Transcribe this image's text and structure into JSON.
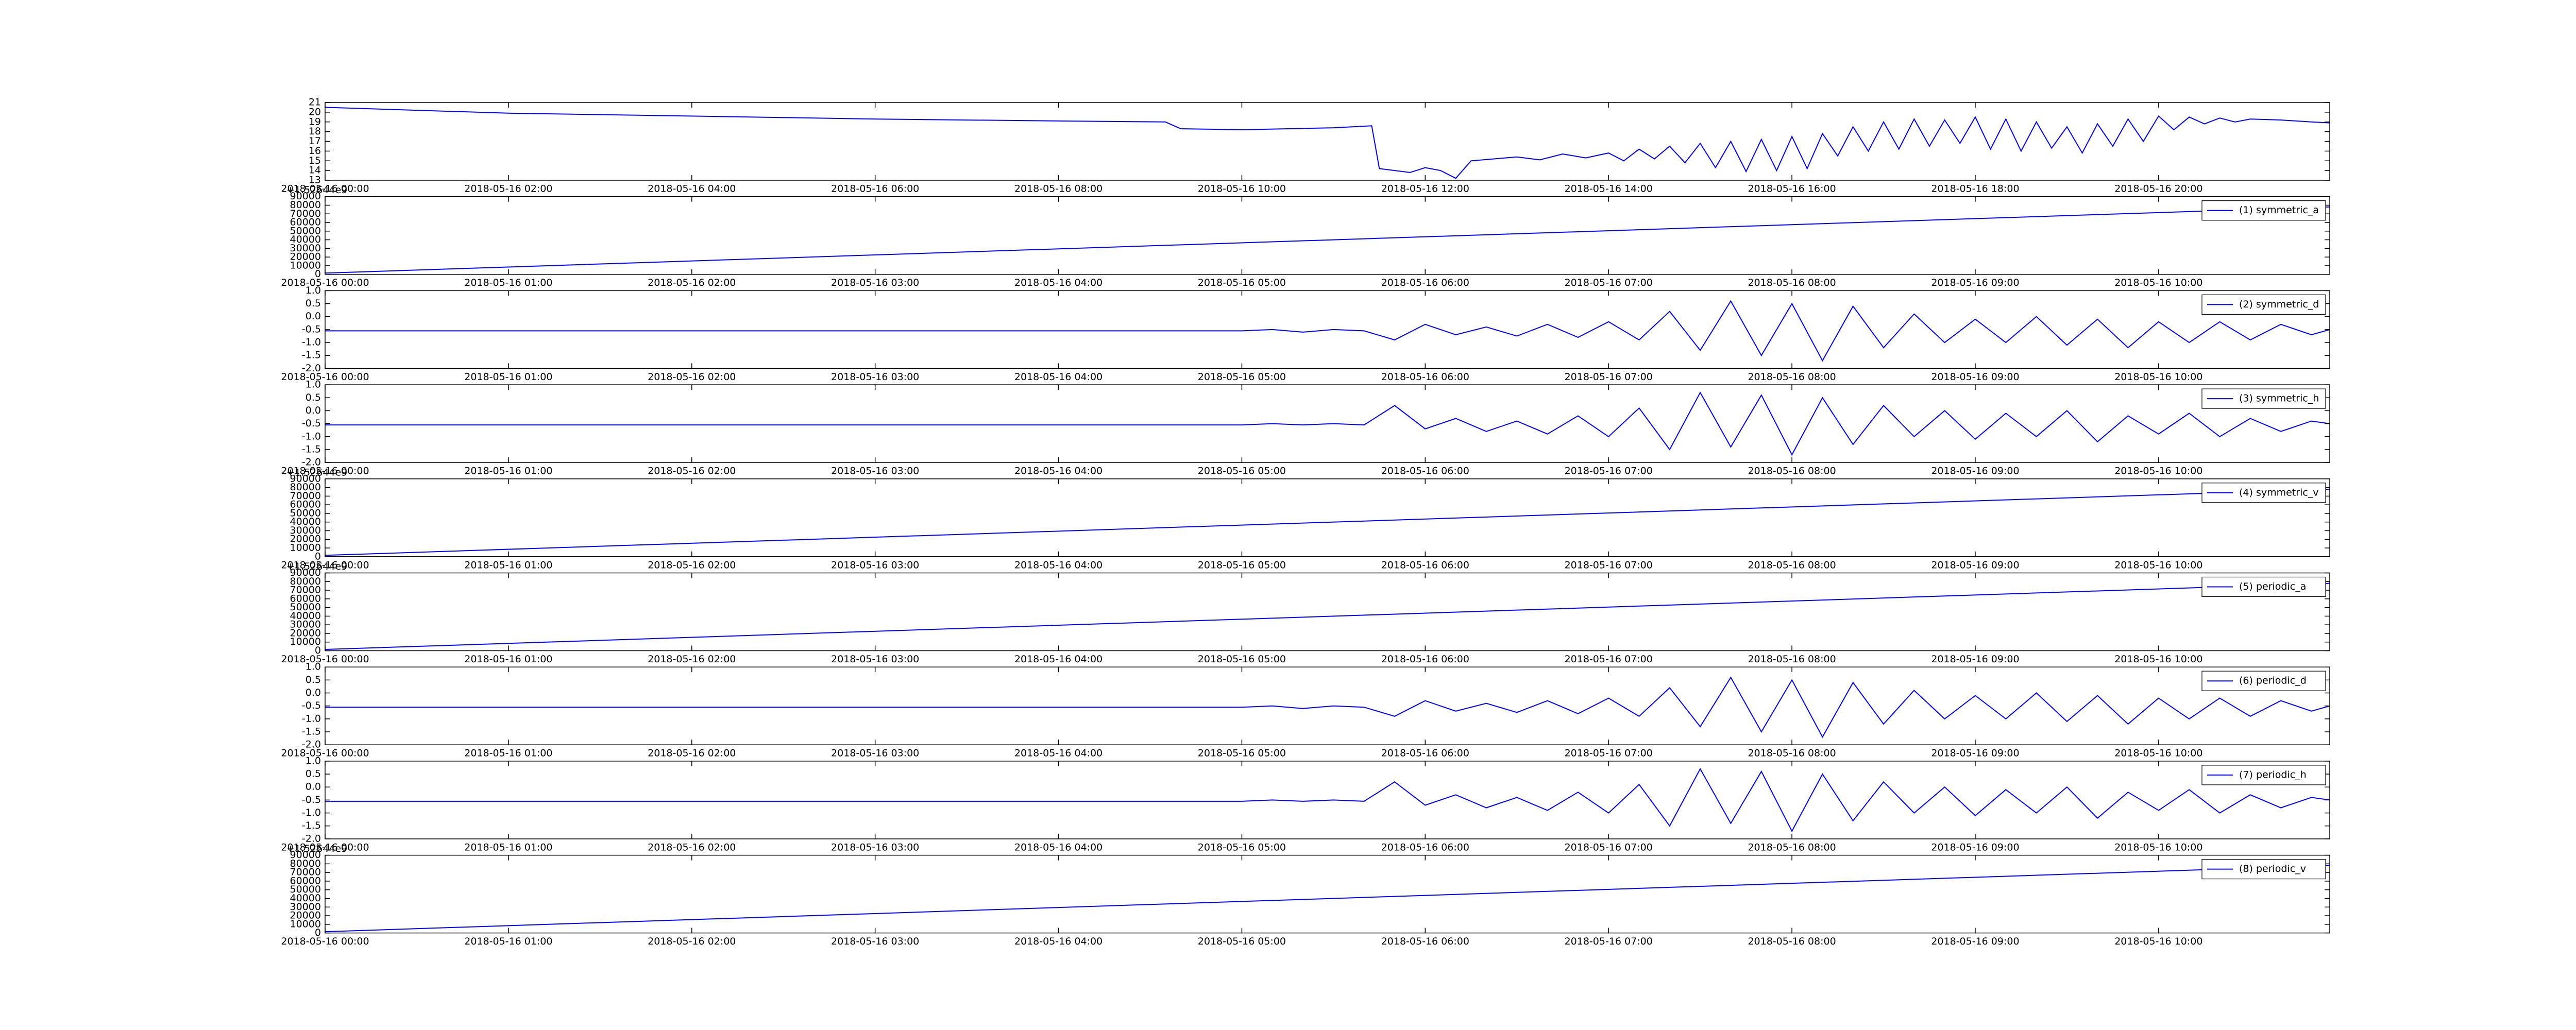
{
  "chart_data": [
    {
      "type": "line",
      "x": [
        "2018-05-16 00:00",
        "2018-05-16 02:00",
        "2018-05-16 04:00",
        "2018-05-16 06:00",
        "2018-05-16 08:00",
        "2018-05-16 09:10",
        "2018-05-16 09:20",
        "2018-05-16 10:00",
        "2018-05-16 10:30",
        "2018-05-16 11:00",
        "2018-05-16 11:25",
        "2018-05-16 11:30",
        "2018-05-16 11:50",
        "2018-05-16 12:00",
        "2018-05-16 12:10",
        "2018-05-16 12:20",
        "2018-05-16 12:30",
        "2018-05-16 12:45",
        "2018-05-16 13:00",
        "2018-05-16 13:15",
        "2018-05-16 13:30",
        "2018-05-16 13:45",
        "2018-05-16 14:00",
        "2018-05-16 14:10",
        "2018-05-16 14:20",
        "2018-05-16 14:30",
        "2018-05-16 14:40",
        "2018-05-16 14:50",
        "2018-05-16 15:00",
        "2018-05-16 15:10",
        "2018-05-16 15:20",
        "2018-05-16 15:30",
        "2018-05-16 15:40",
        "2018-05-16 15:50",
        "2018-05-16 16:00",
        "2018-05-16 16:10",
        "2018-05-16 16:20",
        "2018-05-16 16:30",
        "2018-05-16 16:40",
        "2018-05-16 16:50",
        "2018-05-16 17:00",
        "2018-05-16 17:10",
        "2018-05-16 17:20",
        "2018-05-16 17:30",
        "2018-05-16 17:40",
        "2018-05-16 17:50",
        "2018-05-16 18:00",
        "2018-05-16 18:10",
        "2018-05-16 18:20",
        "2018-05-16 18:30",
        "2018-05-16 18:40",
        "2018-05-16 18:50",
        "2018-05-16 19:00",
        "2018-05-16 19:10",
        "2018-05-16 19:20",
        "2018-05-16 19:30",
        "2018-05-16 19:40",
        "2018-05-16 19:50",
        "2018-05-16 20:00",
        "2018-05-16 20:10",
        "2018-05-16 20:20",
        "2018-05-16 20:30",
        "2018-05-16 20:40",
        "2018-05-16 20:50",
        "2018-05-16 21:00",
        "2018-05-16 21:20",
        "2018-05-16 21:40",
        "2018-05-16 21:52"
      ],
      "series": [
        {
          "color": "#0000ff",
          "values": [
            20.5,
            19.9,
            19.6,
            19.3,
            19.1,
            19.0,
            18.3,
            18.2,
            18.3,
            18.4,
            18.6,
            14.2,
            13.8,
            14.3,
            14.0,
            13.2,
            15.0,
            15.2,
            15.4,
            15.1,
            15.7,
            15.3,
            15.8,
            15.0,
            16.2,
            15.2,
            16.5,
            14.8,
            16.8,
            14.3,
            17.0,
            13.9,
            17.2,
            14.0,
            17.5,
            14.2,
            17.8,
            15.5,
            18.5,
            16.0,
            19.0,
            16.2,
            19.3,
            16.5,
            19.2,
            16.8,
            19.5,
            16.2,
            19.3,
            16.0,
            19.0,
            16.3,
            18.5,
            15.8,
            18.8,
            16.5,
            19.3,
            17.0,
            19.6,
            18.2,
            19.5,
            18.8,
            19.4,
            19.0,
            19.3,
            19.2,
            19.0,
            18.9
          ]
        }
      ],
      "xlim": [
        "2018-05-16 00:00",
        "2018-05-16 21:52"
      ],
      "xticks": [
        "2018-05-16 00:00",
        "2018-05-16 02:00",
        "2018-05-16 04:00",
        "2018-05-16 06:00",
        "2018-05-16 08:00",
        "2018-05-16 10:00",
        "2018-05-16 12:00",
        "2018-05-16 14:00",
        "2018-05-16 16:00",
        "2018-05-16 18:00",
        "2018-05-16 20:00"
      ],
      "ylim": [
        13,
        21
      ],
      "yticks": [
        13,
        14,
        15,
        16,
        17,
        18,
        19,
        20,
        21
      ]
    },
    {
      "type": "line",
      "x": [
        "2018-05-16 00:00",
        "2018-05-16 10:56"
      ],
      "series": [
        {
          "name": "(1) symmetric_a",
          "color": "#0000ff",
          "values": [
            1500,
            78000
          ]
        }
      ],
      "xlim": [
        "2018-05-16 00:00",
        "2018-05-16 10:56"
      ],
      "xticks": [
        "2018-05-16 00:00",
        "2018-05-16 01:00",
        "2018-05-16 02:00",
        "2018-05-16 03:00",
        "2018-05-16 04:00",
        "2018-05-16 05:00",
        "2018-05-16 06:00",
        "2018-05-16 07:00",
        "2018-05-16 08:00",
        "2018-05-16 09:00",
        "2018-05-16 10:00"
      ],
      "ylim": [
        0,
        90000
      ],
      "yticks": [
        0,
        10000,
        20000,
        30000,
        40000,
        50000,
        60000,
        70000,
        80000,
        90000
      ],
      "y_offset": "+1.52644e9",
      "legend": "upper right"
    },
    {
      "type": "line",
      "x": [
        "2018-05-16 00:00",
        "2018-05-16 05:00",
        "2018-05-16 05:10",
        "2018-05-16 05:20",
        "2018-05-16 05:30",
        "2018-05-16 05:40",
        "2018-05-16 05:50",
        "2018-05-16 06:00",
        "2018-05-16 06:10",
        "2018-05-16 06:20",
        "2018-05-16 06:30",
        "2018-05-16 06:40",
        "2018-05-16 06:50",
        "2018-05-16 07:00",
        "2018-05-16 07:10",
        "2018-05-16 07:20",
        "2018-05-16 07:30",
        "2018-05-16 07:40",
        "2018-05-16 07:50",
        "2018-05-16 08:00",
        "2018-05-16 08:10",
        "2018-05-16 08:20",
        "2018-05-16 08:30",
        "2018-05-16 08:40",
        "2018-05-16 08:50",
        "2018-05-16 09:00",
        "2018-05-16 09:10",
        "2018-05-16 09:20",
        "2018-05-16 09:30",
        "2018-05-16 09:40",
        "2018-05-16 09:50",
        "2018-05-16 10:00",
        "2018-05-16 10:10",
        "2018-05-16 10:20",
        "2018-05-16 10:30",
        "2018-05-16 10:40",
        "2018-05-16 10:50",
        "2018-05-16 10:56"
      ],
      "series": [
        {
          "name": "(2) symmetric_d",
          "color": "#0000ff",
          "values": [
            -0.55,
            -0.55,
            -0.5,
            -0.6,
            -0.5,
            -0.55,
            -0.9,
            -0.3,
            -0.7,
            -0.4,
            -0.75,
            -0.3,
            -0.8,
            -0.2,
            -0.9,
            0.2,
            -1.3,
            0.6,
            -1.5,
            0.5,
            -1.7,
            0.4,
            -1.2,
            0.1,
            -1.0,
            -0.1,
            -1.0,
            0.0,
            -1.1,
            -0.1,
            -1.2,
            -0.2,
            -1.0,
            -0.2,
            -0.9,
            -0.3,
            -0.7,
            -0.5
          ]
        }
      ],
      "xlim": [
        "2018-05-16 00:00",
        "2018-05-16 10:56"
      ],
      "xticks": [
        "2018-05-16 00:00",
        "2018-05-16 01:00",
        "2018-05-16 02:00",
        "2018-05-16 03:00",
        "2018-05-16 04:00",
        "2018-05-16 05:00",
        "2018-05-16 06:00",
        "2018-05-16 07:00",
        "2018-05-16 08:00",
        "2018-05-16 09:00",
        "2018-05-16 10:00"
      ],
      "ylim": [
        -2,
        1
      ],
      "yticks": [
        {
          "value": -2,
          "label": "-2.0"
        },
        -1.5,
        {
          "value": -1,
          "label": "-1.0"
        },
        -0.5,
        {
          "value": 0,
          "label": "0.0"
        },
        0.5,
        {
          "value": 1,
          "label": "1.0"
        }
      ],
      "legend": "upper right"
    },
    {
      "type": "line",
      "x": [
        "2018-05-16 00:00",
        "2018-05-16 05:00",
        "2018-05-16 05:10",
        "2018-05-16 05:20",
        "2018-05-16 05:30",
        "2018-05-16 05:40",
        "2018-05-16 05:50",
        "2018-05-16 06:00",
        "2018-05-16 06:10",
        "2018-05-16 06:20",
        "2018-05-16 06:30",
        "2018-05-16 06:40",
        "2018-05-16 06:50",
        "2018-05-16 07:00",
        "2018-05-16 07:10",
        "2018-05-16 07:20",
        "2018-05-16 07:30",
        "2018-05-16 07:40",
        "2018-05-16 07:50",
        "2018-05-16 08:00",
        "2018-05-16 08:10",
        "2018-05-16 08:20",
        "2018-05-16 08:30",
        "2018-05-16 08:40",
        "2018-05-16 08:50",
        "2018-05-16 09:00",
        "2018-05-16 09:10",
        "2018-05-16 09:20",
        "2018-05-16 09:30",
        "2018-05-16 09:40",
        "2018-05-16 09:50",
        "2018-05-16 10:00",
        "2018-05-16 10:10",
        "2018-05-16 10:20",
        "2018-05-16 10:30",
        "2018-05-16 10:40",
        "2018-05-16 10:50",
        "2018-05-16 10:56"
      ],
      "series": [
        {
          "name": "(3) symmetric_h",
          "color": "#0000ff",
          "values": [
            -0.55,
            -0.55,
            -0.5,
            -0.55,
            -0.5,
            -0.55,
            0.2,
            -0.7,
            -0.3,
            -0.8,
            -0.4,
            -0.9,
            -0.2,
            -1.0,
            0.1,
            -1.5,
            0.7,
            -1.4,
            0.6,
            -1.7,
            0.5,
            -1.3,
            0.2,
            -1.0,
            0.0,
            -1.1,
            -0.1,
            -1.0,
            0.0,
            -1.2,
            -0.2,
            -0.9,
            -0.1,
            -1.0,
            -0.3,
            -0.8,
            -0.4,
            -0.5
          ]
        }
      ],
      "xlim": [
        "2018-05-16 00:00",
        "2018-05-16 10:56"
      ],
      "xticks": [
        "2018-05-16 00:00",
        "2018-05-16 01:00",
        "2018-05-16 02:00",
        "2018-05-16 03:00",
        "2018-05-16 04:00",
        "2018-05-16 05:00",
        "2018-05-16 06:00",
        "2018-05-16 07:00",
        "2018-05-16 08:00",
        "2018-05-16 09:00",
        "2018-05-16 10:00"
      ],
      "ylim": [
        -2,
        1
      ],
      "yticks": [
        {
          "value": -2,
          "label": "-2.0"
        },
        -1.5,
        {
          "value": -1,
          "label": "-1.0"
        },
        -0.5,
        {
          "value": 0,
          "label": "0.0"
        },
        0.5,
        {
          "value": 1,
          "label": "1.0"
        }
      ],
      "legend": "upper right"
    },
    {
      "type": "line",
      "x": [
        "2018-05-16 00:00",
        "2018-05-16 10:56"
      ],
      "series": [
        {
          "name": "(4) symmetric_v",
          "color": "#0000ff",
          "values": [
            1500,
            78000
          ]
        }
      ],
      "xlim": [
        "2018-05-16 00:00",
        "2018-05-16 10:56"
      ],
      "xticks": [
        "2018-05-16 00:00",
        "2018-05-16 01:00",
        "2018-05-16 02:00",
        "2018-05-16 03:00",
        "2018-05-16 04:00",
        "2018-05-16 05:00",
        "2018-05-16 06:00",
        "2018-05-16 07:00",
        "2018-05-16 08:00",
        "2018-05-16 09:00",
        "2018-05-16 10:00"
      ],
      "ylim": [
        0,
        90000
      ],
      "yticks": [
        0,
        10000,
        20000,
        30000,
        40000,
        50000,
        60000,
        70000,
        80000,
        90000
      ],
      "y_offset": "+1.52644e9",
      "legend": "upper right"
    },
    {
      "type": "line",
      "x": [
        "2018-05-16 00:00",
        "2018-05-16 10:56"
      ],
      "series": [
        {
          "name": "(5) periodic_a",
          "color": "#0000ff",
          "values": [
            1500,
            78000
          ]
        }
      ],
      "xlim": [
        "2018-05-16 00:00",
        "2018-05-16 10:56"
      ],
      "xticks": [
        "2018-05-16 00:00",
        "2018-05-16 01:00",
        "2018-05-16 02:00",
        "2018-05-16 03:00",
        "2018-05-16 04:00",
        "2018-05-16 05:00",
        "2018-05-16 06:00",
        "2018-05-16 07:00",
        "2018-05-16 08:00",
        "2018-05-16 09:00",
        "2018-05-16 10:00"
      ],
      "ylim": [
        0,
        90000
      ],
      "yticks": [
        0,
        10000,
        20000,
        30000,
        40000,
        50000,
        60000,
        70000,
        80000,
        90000
      ],
      "y_offset": "+1.52644e9",
      "legend": "upper right"
    },
    {
      "type": "line",
      "x": [
        "2018-05-16 00:00",
        "2018-05-16 05:00",
        "2018-05-16 05:10",
        "2018-05-16 05:20",
        "2018-05-16 05:30",
        "2018-05-16 05:40",
        "2018-05-16 05:50",
        "2018-05-16 06:00",
        "2018-05-16 06:10",
        "2018-05-16 06:20",
        "2018-05-16 06:30",
        "2018-05-16 06:40",
        "2018-05-16 06:50",
        "2018-05-16 07:00",
        "2018-05-16 07:10",
        "2018-05-16 07:20",
        "2018-05-16 07:30",
        "2018-05-16 07:40",
        "2018-05-16 07:50",
        "2018-05-16 08:00",
        "2018-05-16 08:10",
        "2018-05-16 08:20",
        "2018-05-16 08:30",
        "2018-05-16 08:40",
        "2018-05-16 08:50",
        "2018-05-16 09:00",
        "2018-05-16 09:10",
        "2018-05-16 09:20",
        "2018-05-16 09:30",
        "2018-05-16 09:40",
        "2018-05-16 09:50",
        "2018-05-16 10:00",
        "2018-05-16 10:10",
        "2018-05-16 10:20",
        "2018-05-16 10:30",
        "2018-05-16 10:40",
        "2018-05-16 10:50",
        "2018-05-16 10:56"
      ],
      "series": [
        {
          "name": "(6) periodic_d",
          "color": "#0000ff",
          "values": [
            -0.55,
            -0.55,
            -0.5,
            -0.6,
            -0.5,
            -0.55,
            -0.9,
            -0.3,
            -0.7,
            -0.4,
            -0.75,
            -0.3,
            -0.8,
            -0.2,
            -0.9,
            0.2,
            -1.3,
            0.6,
            -1.5,
            0.5,
            -1.7,
            0.4,
            -1.2,
            0.1,
            -1.0,
            -0.1,
            -1.0,
            0.0,
            -1.1,
            -0.1,
            -1.2,
            -0.2,
            -1.0,
            -0.2,
            -0.9,
            -0.3,
            -0.7,
            -0.5
          ]
        }
      ],
      "xlim": [
        "2018-05-16 00:00",
        "2018-05-16 10:56"
      ],
      "xticks": [
        "2018-05-16 00:00",
        "2018-05-16 01:00",
        "2018-05-16 02:00",
        "2018-05-16 03:00",
        "2018-05-16 04:00",
        "2018-05-16 05:00",
        "2018-05-16 06:00",
        "2018-05-16 07:00",
        "2018-05-16 08:00",
        "2018-05-16 09:00",
        "2018-05-16 10:00"
      ],
      "ylim": [
        -2,
        1
      ],
      "yticks": [
        {
          "value": -2,
          "label": "-2.0"
        },
        -1.5,
        {
          "value": -1,
          "label": "-1.0"
        },
        -0.5,
        {
          "value": 0,
          "label": "0.0"
        },
        0.5,
        {
          "value": 1,
          "label": "1.0"
        }
      ],
      "legend": "upper right"
    },
    {
      "type": "line",
      "x": [
        "2018-05-16 00:00",
        "2018-05-16 05:00",
        "2018-05-16 05:10",
        "2018-05-16 05:20",
        "2018-05-16 05:30",
        "2018-05-16 05:40",
        "2018-05-16 05:50",
        "2018-05-16 06:00",
        "2018-05-16 06:10",
        "2018-05-16 06:20",
        "2018-05-16 06:30",
        "2018-05-16 06:40",
        "2018-05-16 06:50",
        "2018-05-16 07:00",
        "2018-05-16 07:10",
        "2018-05-16 07:20",
        "2018-05-16 07:30",
        "2018-05-16 07:40",
        "2018-05-16 07:50",
        "2018-05-16 08:00",
        "2018-05-16 08:10",
        "2018-05-16 08:20",
        "2018-05-16 08:30",
        "2018-05-16 08:40",
        "2018-05-16 08:50",
        "2018-05-16 09:00",
        "2018-05-16 09:10",
        "2018-05-16 09:20",
        "2018-05-16 09:30",
        "2018-05-16 09:40",
        "2018-05-16 09:50",
        "2018-05-16 10:00",
        "2018-05-16 10:10",
        "2018-05-16 10:20",
        "2018-05-16 10:30",
        "2018-05-16 10:40",
        "2018-05-16 10:50",
        "2018-05-16 10:56"
      ],
      "series": [
        {
          "name": "(7) periodic_h",
          "color": "#0000ff",
          "values": [
            -0.55,
            -0.55,
            -0.5,
            -0.55,
            -0.5,
            -0.55,
            0.2,
            -0.7,
            -0.3,
            -0.8,
            -0.4,
            -0.9,
            -0.2,
            -1.0,
            0.1,
            -1.5,
            0.7,
            -1.4,
            0.6,
            -1.7,
            0.5,
            -1.3,
            0.2,
            -1.0,
            0.0,
            -1.1,
            -0.1,
            -1.0,
            0.0,
            -1.2,
            -0.2,
            -0.9,
            -0.1,
            -1.0,
            -0.3,
            -0.8,
            -0.4,
            -0.5
          ]
        }
      ],
      "xlim": [
        "2018-05-16 00:00",
        "2018-05-16 10:56"
      ],
      "xticks": [
        "2018-05-16 00:00",
        "2018-05-16 01:00",
        "2018-05-16 02:00",
        "2018-05-16 03:00",
        "2018-05-16 04:00",
        "2018-05-16 05:00",
        "2018-05-16 06:00",
        "2018-05-16 07:00",
        "2018-05-16 08:00",
        "2018-05-16 09:00",
        "2018-05-16 10:00"
      ],
      "ylim": [
        -2,
        1
      ],
      "yticks": [
        {
          "value": -2,
          "label": "-2.0"
        },
        -1.5,
        {
          "value": -1,
          "label": "-1.0"
        },
        -0.5,
        {
          "value": 0,
          "label": "0.0"
        },
        0.5,
        {
          "value": 1,
          "label": "1.0"
        }
      ],
      "legend": "upper right"
    },
    {
      "type": "line",
      "x": [
        "2018-05-16 00:00",
        "2018-05-16 10:56"
      ],
      "series": [
        {
          "name": "(8) periodic_v",
          "color": "#0000ff",
          "values": [
            1500,
            78000
          ]
        }
      ],
      "xlim": [
        "2018-05-16 00:00",
        "2018-05-16 10:56"
      ],
      "xticks": [
        "2018-05-16 00:00",
        "2018-05-16 01:00",
        "2018-05-16 02:00",
        "2018-05-16 03:00",
        "2018-05-16 04:00",
        "2018-05-16 05:00",
        "2018-05-16 06:00",
        "2018-05-16 07:00",
        "2018-05-16 08:00",
        "2018-05-16 09:00",
        "2018-05-16 10:00"
      ],
      "ylim": [
        0,
        90000
      ],
      "yticks": [
        0,
        10000,
        20000,
        30000,
        40000,
        50000,
        60000,
        70000,
        80000,
        90000
      ],
      "y_offset": "+1.52644e9",
      "legend": "upper right"
    }
  ]
}
